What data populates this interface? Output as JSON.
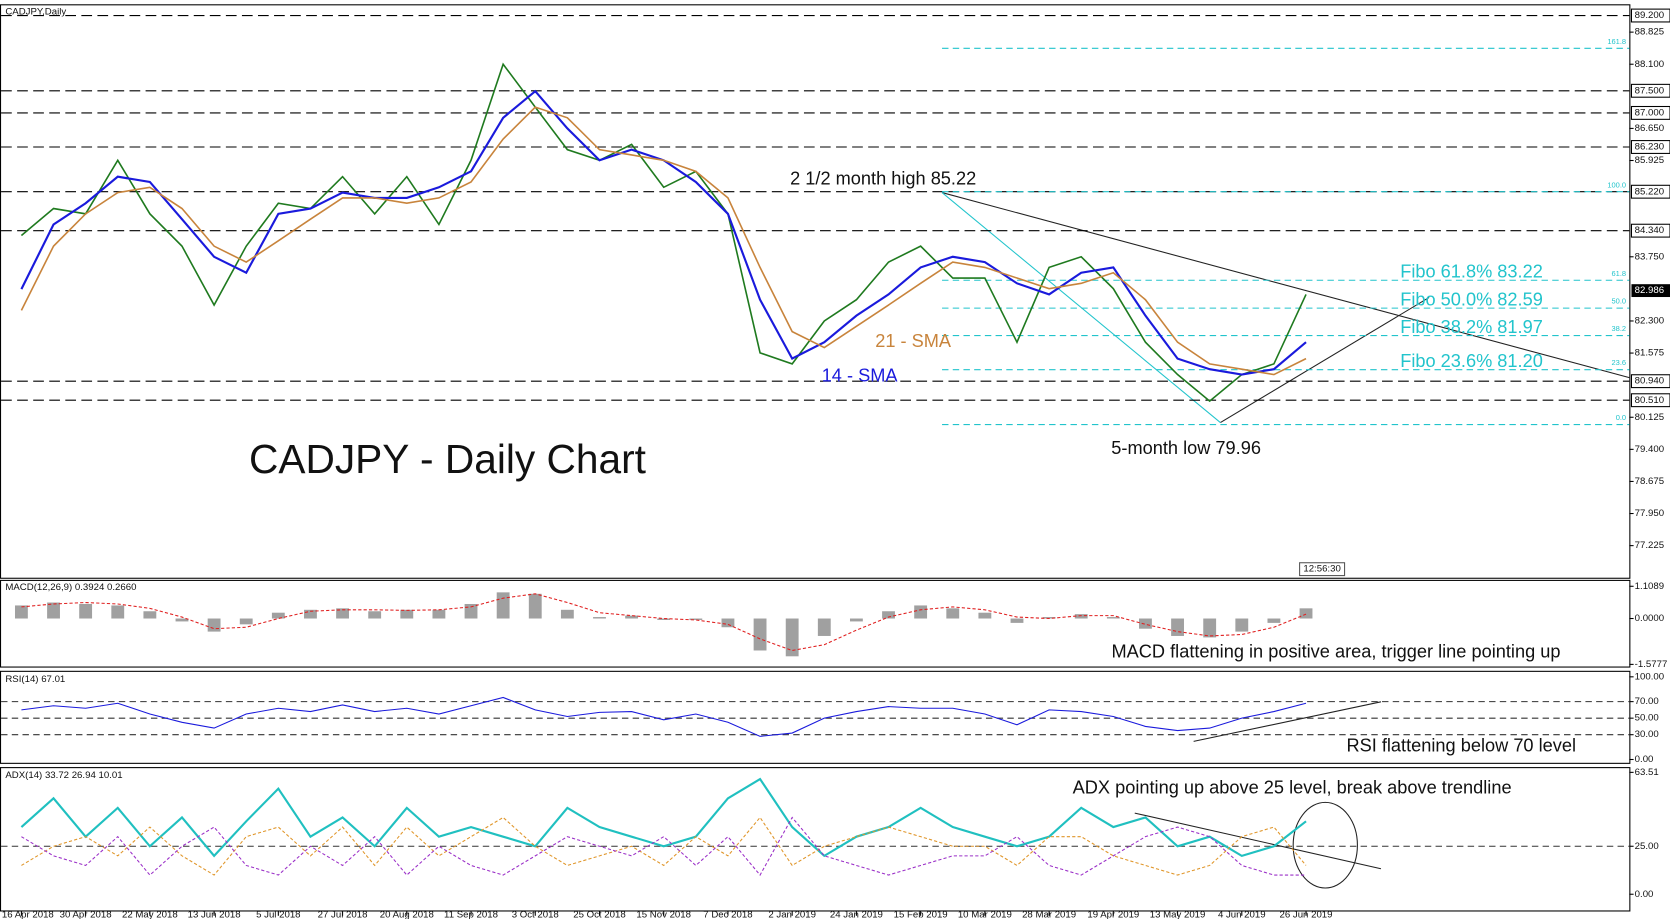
{
  "chart_data": [
    {
      "type": "price",
      "title": "CADJPY,Daily",
      "subtitle": "CADJPY - Daily Chart",
      "time": "12:56:30",
      "categories": [
        "16 Apr 2018",
        null,
        "30 Apr 2018",
        null,
        "22 May 2018",
        null,
        "13 Jun 2018",
        null,
        "5 Jul 2018",
        null,
        "27 Jul 2018",
        null,
        "20 Aug 2018",
        null,
        "11 Sep 2018",
        null,
        "3 Oct 2018",
        null,
        "25 Oct 2018",
        null,
        "15 Nov 2018",
        null,
        "7 Dec 2018",
        null,
        "2 Jan 2019",
        null,
        "24 Jan 2019",
        null,
        "15 Feb 2019",
        null,
        "10 Mar 2019",
        null,
        "28 Mar 2019",
        null,
        "19 Apr 2019",
        null,
        "13 May 2019",
        null,
        "4 Jun 2019",
        null,
        "26 Jun 2019"
      ],
      "series": [
        {
          "color": "#1f7a1f",
          "width": 1.5,
          "values": [
            84.23,
            84.84,
            84.72,
            85.93,
            84.72,
            83.99,
            82.66,
            83.99,
            84.96,
            84.84,
            85.56,
            84.72,
            85.56,
            84.48,
            85.93,
            88.1,
            87.13,
            86.17,
            85.93,
            86.29,
            85.32,
            85.68,
            84.72,
            81.58,
            81.33,
            82.3,
            82.78,
            83.63,
            83.99,
            83.27,
            83.27,
            81.82,
            83.51,
            83.75,
            83.03,
            81.82,
            81.09,
            80.49,
            81.09,
            81.33,
            82.9
          ]
        },
        {
          "color": "#1a1adc",
          "width": 2,
          "values": [
            83.02,
            84.48,
            84.96,
            85.56,
            85.44,
            84.6,
            83.75,
            83.39,
            84.72,
            84.84,
            85.2,
            85.08,
            85.08,
            85.32,
            85.68,
            86.89,
            87.49,
            86.65,
            85.93,
            86.17,
            85.93,
            85.44,
            84.72,
            82.78,
            81.45,
            81.82,
            82.42,
            82.9,
            83.51,
            83.75,
            83.63,
            83.15,
            82.9,
            83.39,
            83.51,
            82.42,
            81.45,
            81.21,
            81.09,
            81.21,
            81.82
          ]
        },
        {
          "color": "#c8843c",
          "width": 1.5,
          "values": [
            82.54,
            83.99,
            84.72,
            85.2,
            85.32,
            84.84,
            83.99,
            83.63,
            84.11,
            84.6,
            85.08,
            85.08,
            84.96,
            85.08,
            85.44,
            86.41,
            87.13,
            86.89,
            86.17,
            86.05,
            85.93,
            85.68,
            85.08,
            83.51,
            82.06,
            81.7,
            82.18,
            82.66,
            83.15,
            83.63,
            83.51,
            83.27,
            83.03,
            83.15,
            83.39,
            82.78,
            81.82,
            81.33,
            81.21,
            81.09,
            81.45
          ]
        }
      ],
      "ylim": [
        76.5,
        89.43
      ],
      "yticks": [
        77.225,
        {
          "value": 77.95,
          "label": "77.950"
        },
        78.675,
        {
          "value": 79.4,
          "label": "79.400"
        },
        80.125,
        81.575,
        {
          "value": 82.3,
          "label": "82.300"
        },
        {
          "value": 83.75,
          "label": "83.750"
        },
        85.925,
        {
          "value": 86.65,
          "label": "86.650"
        },
        {
          "value": 88.1,
          "label": "88.100"
        },
        88.825
      ],
      "grid": false,
      "levels": [
        {
          "value": 89.2,
          "label": "89.200"
        },
        {
          "value": 87.5,
          "label": "87.500"
        },
        {
          "value": 87.0,
          "label": "87.000"
        },
        {
          "value": 86.23,
          "label": "86.230"
        },
        {
          "value": 85.22,
          "label": "85.220"
        },
        {
          "value": 84.34,
          "label": "84.340"
        },
        {
          "value": 80.94,
          "label": "80.940"
        },
        {
          "value": 80.51,
          "label": "80.510"
        }
      ],
      "last_price": 82.986,
      "fibo": [
        {
          "ratio": "161.8",
          "value": 88.46
        },
        {
          "ratio": "100.0",
          "value": 85.22
        },
        {
          "ratio": "61.8",
          "value": 83.22,
          "text": "Fibo 61.8% 83.22"
        },
        {
          "ratio": "50.0",
          "value": 82.59,
          "text": "Fibo 50.0% 82.59"
        },
        {
          "ratio": "38.2",
          "value": 81.97,
          "text": "Fibo 38.2% 81.97"
        },
        {
          "ratio": "23.6",
          "value": 81.2,
          "text": "Fibo 23.6% 81.20"
        },
        {
          "ratio": "0.0",
          "value": 79.96
        }
      ],
      "fibo_color": "#22c4cc",
      "annotations": [
        {
          "text": "2 1/2 month high 85.22",
          "color": "#111111"
        },
        {
          "text": "5-month low 79.96",
          "color": "#111111"
        },
        {
          "text": "14 - SMA",
          "color": "#1a1adc"
        },
        {
          "text": "21 - SMA",
          "color": "#c8843c"
        }
      ]
    },
    {
      "type": "macd",
      "title": "MACD(12,26,9) 0.3924 0.2660",
      "series": [
        {
          "style": "bar",
          "color": "#a0a0a0",
          "values": [
            0.45,
            0.55,
            0.5,
            0.45,
            0.25,
            -0.1,
            -0.45,
            -0.2,
            0.2,
            0.3,
            0.35,
            0.25,
            0.3,
            0.3,
            0.5,
            0.9,
            0.85,
            0.3,
            0.05,
            0.1,
            -0.05,
            -0.05,
            -0.3,
            -1.1,
            -1.3,
            -0.6,
            -0.1,
            0.25,
            0.45,
            0.35,
            0.2,
            -0.15,
            0.05,
            0.15,
            0.05,
            -0.35,
            -0.6,
            -0.65,
            -0.45,
            -0.15,
            0.35
          ]
        },
        {
          "style": "dashed",
          "color": "#e02020",
          "values": [
            0.4,
            0.5,
            0.55,
            0.5,
            0.35,
            0.05,
            -0.35,
            -0.3,
            0.0,
            0.25,
            0.3,
            0.3,
            0.28,
            0.3,
            0.4,
            0.7,
            0.85,
            0.55,
            0.2,
            0.1,
            0.0,
            -0.05,
            -0.2,
            -0.7,
            -1.1,
            -0.9,
            -0.4,
            0.05,
            0.3,
            0.4,
            0.3,
            0.05,
            0.0,
            0.1,
            0.1,
            -0.2,
            -0.45,
            -0.6,
            -0.55,
            -0.3,
            0.15
          ]
        }
      ],
      "ylim": [
        -1.651,
        1.293
      ],
      "yticks": [
        1.1089,
        {
          "value": 0,
          "label": "0.0000"
        },
        -1.5777
      ],
      "grid": false,
      "annotation": "MACD flattening in positive area, trigger line pointing up"
    },
    {
      "type": "rsi",
      "title": "RSI(14) 67.01",
      "series": [
        {
          "style": "solid",
          "color": "#1a1adc",
          "values": [
            60,
            65,
            62,
            68,
            55,
            45,
            38,
            55,
            62,
            58,
            66,
            58,
            62,
            55,
            65,
            75,
            60,
            52,
            57,
            58,
            48,
            55,
            45,
            28,
            32,
            50,
            58,
            64,
            62,
            62,
            55,
            42,
            60,
            58,
            52,
            40,
            35,
            38,
            50,
            58,
            68
          ]
        }
      ],
      "ylim": [
        -4,
        106
      ],
      "yticks": [
        {
          "value": 100,
          "label": "100.00"
        },
        {
          "value": 70,
          "label": "70.00"
        },
        {
          "value": 50,
          "label": "50.00"
        },
        {
          "value": 30,
          "label": "30.00"
        },
        {
          "value": 0,
          "label": "0.00"
        }
      ],
      "grid": true,
      "annotation": "RSI flattening below 70 level"
    },
    {
      "type": "adx",
      "title": "ADX(14) 33.72 26.94 10.01",
      "series": [
        {
          "style": "thick",
          "color": "#20c0c0",
          "values": [
            35,
            50,
            30,
            45,
            25,
            40,
            20,
            38,
            55,
            30,
            40,
            25,
            45,
            30,
            35,
            30,
            25,
            45,
            35,
            30,
            25,
            30,
            50,
            60,
            35,
            20,
            30,
            35,
            45,
            35,
            30,
            25,
            30,
            45,
            35,
            40,
            25,
            30,
            20,
            25,
            38
          ]
        },
        {
          "style": "dashed",
          "color": "#e0962a",
          "values": [
            15,
            25,
            30,
            20,
            35,
            20,
            10,
            30,
            35,
            20,
            35,
            15,
            35,
            20,
            30,
            40,
            25,
            15,
            20,
            25,
            15,
            30,
            20,
            40,
            15,
            25,
            30,
            35,
            30,
            25,
            25,
            15,
            30,
            30,
            20,
            15,
            10,
            15,
            30,
            35,
            15
          ]
        },
        {
          "style": "dashed",
          "color": "#9b30c8",
          "values": [
            30,
            20,
            15,
            30,
            10,
            25,
            35,
            15,
            10,
            25,
            15,
            30,
            10,
            25,
            15,
            10,
            20,
            30,
            25,
            20,
            30,
            15,
            30,
            10,
            40,
            20,
            15,
            10,
            15,
            20,
            20,
            30,
            15,
            10,
            20,
            30,
            35,
            30,
            15,
            10,
            10
          ]
        }
      ],
      "ylim": [
        -9,
        65.7
      ],
      "yticks": [
        63.51,
        {
          "value": 25,
          "label": "25.00"
        },
        {
          "value": 0,
          "label": "0.00"
        }
      ],
      "grid": true,
      "annotation": "ADX pointing up above 25 level, break above trendline"
    }
  ]
}
